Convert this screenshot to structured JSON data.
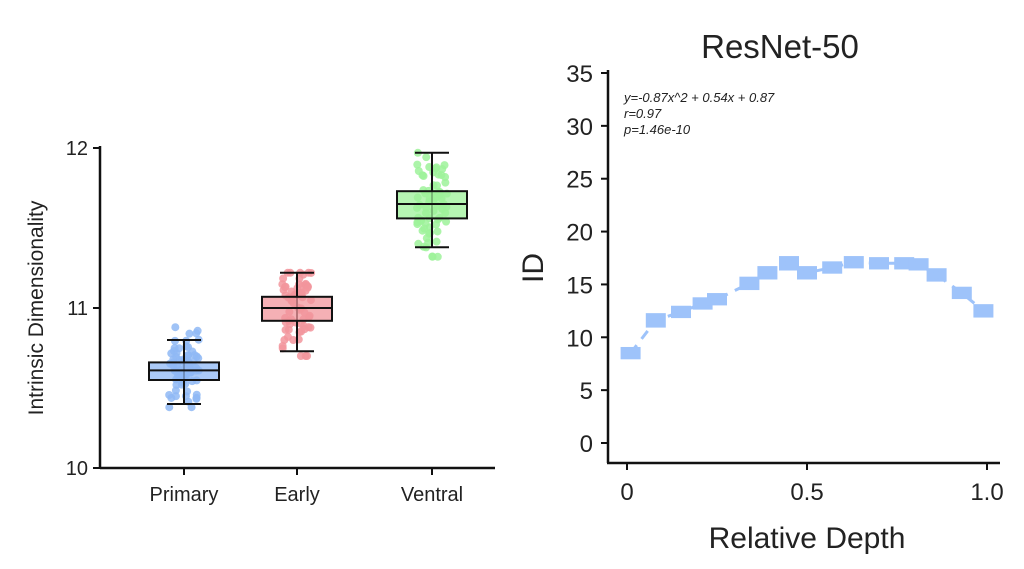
{
  "chart_data": [
    {
      "type": "box",
      "title": "",
      "xlabel": "",
      "ylabel": "Intrinsic Dimensionality",
      "ylim": [
        10,
        12
      ],
      "yticks": [
        "10",
        "11",
        "12"
      ],
      "categories": [
        "Primary",
        "Early",
        "Ventral"
      ],
      "colors": [
        "#8fb8f5",
        "#f2959c",
        "#9ef29a"
      ],
      "boxes": [
        {
          "name": "Primary",
          "whisker_low": 10.4,
          "q1": 10.55,
          "median": 10.61,
          "q3": 10.66,
          "whisker_high": 10.8,
          "points_min": 10.38,
          "points_max": 10.88
        },
        {
          "name": "Early",
          "whisker_low": 10.73,
          "q1": 10.92,
          "median": 11.0,
          "q3": 11.07,
          "whisker_high": 11.22,
          "points_min": 10.7,
          "points_max": 11.22
        },
        {
          "name": "Ventral",
          "whisker_low": 11.38,
          "q1": 11.56,
          "median": 11.65,
          "q3": 11.73,
          "whisker_high": 11.97,
          "points_min": 11.32,
          "points_max": 11.97
        }
      ]
    },
    {
      "type": "line",
      "title": "ResNet-50",
      "xlabel": "Relative Depth",
      "ylabel": "ID",
      "xlim": [
        0,
        1.0
      ],
      "ylim": [
        0,
        35
      ],
      "xticks": [
        "0",
        "0.5",
        "1.0"
      ],
      "yticks": [
        "0",
        "5",
        "10",
        "15",
        "20",
        "25",
        "30",
        "35"
      ],
      "color": "#9ec3fa",
      "annotation": [
        "y=-0.87x^2 + 0.54x + 0.87",
        "r=0.97",
        "p=1.46e-10"
      ],
      "x": [
        0.01,
        0.08,
        0.15,
        0.21,
        0.25,
        0.34,
        0.39,
        0.45,
        0.5,
        0.57,
        0.63,
        0.7,
        0.77,
        0.81,
        0.86,
        0.93,
        0.99
      ],
      "y": [
        8.5,
        11.6,
        12.4,
        13.2,
        13.6,
        15.1,
        16.1,
        17.0,
        16.1,
        16.6,
        17.1,
        17.0,
        17.0,
        16.9,
        15.9,
        14.2,
        12.5
      ],
      "err": [
        0.3,
        0.4,
        0.3,
        0.3,
        0.3,
        0.35,
        0.35,
        0.4,
        0.35,
        0.3,
        0.3,
        0.3,
        0.3,
        0.3,
        0.35,
        0.3,
        0.35
      ]
    }
  ]
}
